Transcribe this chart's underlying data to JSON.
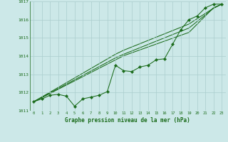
{
  "x": [
    0,
    1,
    2,
    3,
    4,
    5,
    6,
    7,
    8,
    9,
    10,
    11,
    12,
    13,
    14,
    15,
    16,
    17,
    18,
    19,
    20,
    21,
    22,
    23
  ],
  "main_line": [
    1011.5,
    1011.65,
    1011.85,
    1011.9,
    1011.8,
    1011.25,
    1011.65,
    1011.75,
    1011.85,
    1012.05,
    1013.5,
    1013.2,
    1013.15,
    1013.4,
    1013.5,
    1013.8,
    1013.85,
    1014.65,
    1015.45,
    1016.0,
    1016.2,
    1016.65,
    1016.85,
    1016.85
  ],
  "trend1": [
    1011.5,
    1011.72,
    1011.95,
    1012.18,
    1012.41,
    1012.64,
    1012.87,
    1013.1,
    1013.33,
    1013.56,
    1013.79,
    1014.02,
    1014.18,
    1014.34,
    1014.5,
    1014.66,
    1014.82,
    1014.98,
    1015.14,
    1015.3,
    1015.75,
    1016.2,
    1016.65,
    1016.85
  ],
  "trend2": [
    1011.5,
    1011.74,
    1011.98,
    1012.22,
    1012.46,
    1012.7,
    1012.94,
    1013.18,
    1013.42,
    1013.66,
    1013.9,
    1014.1,
    1014.28,
    1014.46,
    1014.64,
    1014.82,
    1015.0,
    1015.18,
    1015.36,
    1015.54,
    1015.9,
    1016.26,
    1016.62,
    1016.85
  ],
  "trend3": [
    1011.5,
    1011.76,
    1012.02,
    1012.28,
    1012.54,
    1012.8,
    1013.06,
    1013.32,
    1013.58,
    1013.84,
    1014.1,
    1014.32,
    1014.5,
    1014.68,
    1014.86,
    1015.04,
    1015.22,
    1015.4,
    1015.58,
    1015.76,
    1016.05,
    1016.34,
    1016.63,
    1016.85
  ],
  "ylim": [
    1011.0,
    1017.0
  ],
  "xlim_min": -0.5,
  "xlim_max": 23.5,
  "yticks": [
    1011,
    1012,
    1013,
    1014,
    1015,
    1016,
    1017
  ],
  "xticks": [
    0,
    1,
    2,
    3,
    4,
    5,
    6,
    7,
    8,
    9,
    10,
    11,
    12,
    13,
    14,
    15,
    16,
    17,
    18,
    19,
    20,
    21,
    22,
    23
  ],
  "xlabel": "Graphe pression niveau de la mer (hPa)",
  "line_color": "#1a6b1a",
  "bg_color": "#cce8e8",
  "grid_color": "#aacece",
  "marker": "D",
  "markersize": 2.2
}
